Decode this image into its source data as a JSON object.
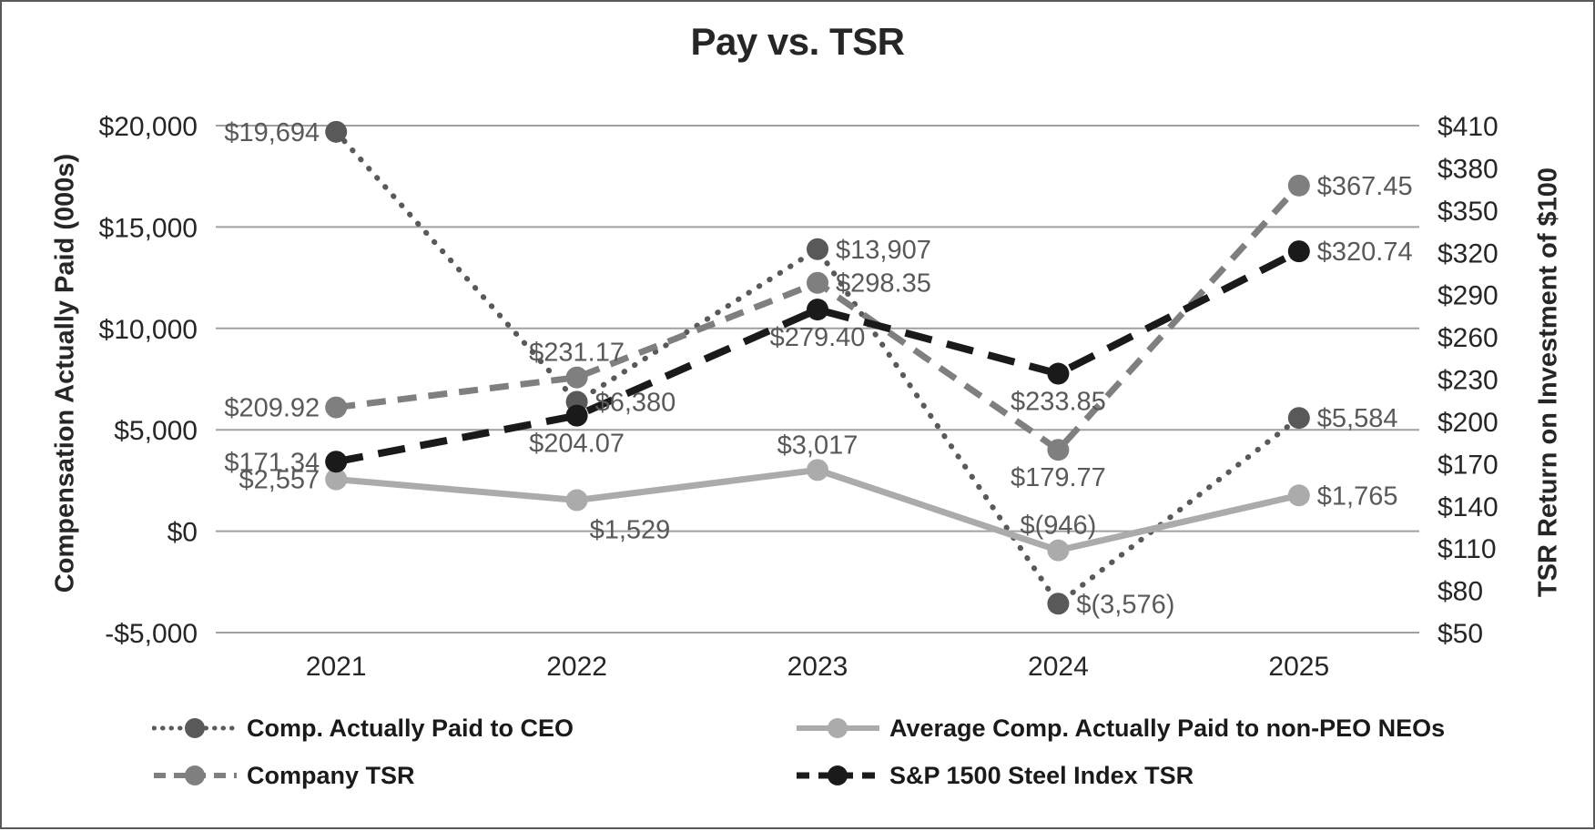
{
  "chart_data": {
    "type": "line",
    "title": "Pay vs. TSR",
    "x": [
      "2021",
      "2022",
      "2023",
      "2024",
      "2025"
    ],
    "axes": {
      "left": {
        "label": "Compensation Actually Paid (000s)",
        "min": -5000,
        "max": 20000,
        "tick_values": [
          20000,
          15000,
          10000,
          5000,
          0,
          -5000
        ],
        "tick_labels": [
          "$20,000",
          "$15,000",
          "$10,000",
          "$5,000",
          "$0",
          "-$5,000"
        ],
        "grid": true
      },
      "right": {
        "label": "TSR Return on Investment of $100",
        "min": 50,
        "max": 410,
        "tick_values": [
          410,
          380,
          350,
          320,
          290,
          260,
          230,
          200,
          170,
          140,
          110,
          80,
          50
        ],
        "tick_labels": [
          "$410",
          "$380",
          "$350",
          "$320",
          "$290",
          "$260",
          "$230",
          "$200",
          "$170",
          "$140",
          "$110",
          "$80",
          "$50"
        ],
        "grid": false
      }
    },
    "series": [
      {
        "name": "Comp. Actually Paid to CEO",
        "axis": "left",
        "line_style": "dotted",
        "color": "#595959",
        "values": [
          19694,
          6380,
          13907,
          -3576,
          5584
        ],
        "point_labels": [
          "$19,694",
          "$6,380",
          "$13,907",
          "$(3,576)",
          "$5,584"
        ],
        "label_pos": [
          "left",
          "right",
          "right",
          "right",
          "right"
        ]
      },
      {
        "name": "Average Comp. Actually Paid to non-PEO NEOs",
        "axis": "left",
        "line_style": "solid",
        "color": "#ababab",
        "values": [
          2557,
          1529,
          3017,
          -946,
          1765
        ],
        "point_labels": [
          "$2,557",
          "$1,529",
          "$3,017",
          "$(946)",
          "$1,765"
        ],
        "label_pos": [
          "left",
          "below-right",
          "above",
          "above",
          "right"
        ]
      },
      {
        "name": "Company TSR",
        "axis": "right",
        "line_style": "dashed",
        "color": "#7f7f7f",
        "values": [
          209.92,
          231.17,
          298.35,
          179.77,
          367.45
        ],
        "point_labels": [
          "$209.92",
          "$231.17",
          "$298.35",
          "$179.77",
          "$367.45"
        ],
        "label_pos": [
          "left",
          "above",
          "right",
          "below",
          "right"
        ]
      },
      {
        "name": "S&P 1500 Steel Index TSR",
        "axis": "right",
        "line_style": "long-dash",
        "color": "#1a1a1a",
        "values": [
          171.34,
          204.07,
          279.4,
          233.85,
          320.74
        ],
        "point_labels": [
          "$171.34",
          "$204.07",
          "$279.40",
          "$233.85",
          "$320.74"
        ],
        "label_pos": [
          "left",
          "below",
          "below",
          "below",
          "right"
        ]
      }
    ],
    "legend_position": "bottom",
    "legend_columns": 2,
    "style_colors": {
      "gridline": "#a0a0a0",
      "data_label": "#595959",
      "tick_label": "#262626",
      "border": "#595959"
    }
  }
}
